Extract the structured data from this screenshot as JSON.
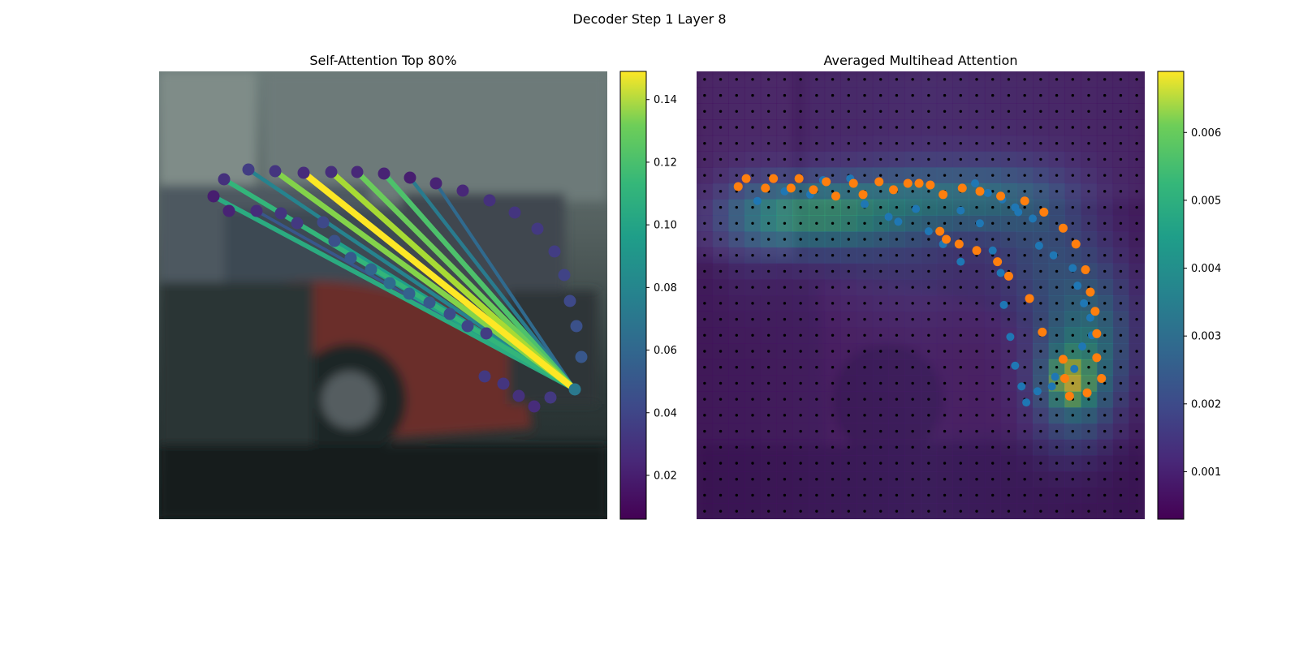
{
  "figure": {
    "suptitle": "Decoder Step 1 Layer 8"
  },
  "chart_data": [
    {
      "type": "scatter",
      "title": "Self-Attention Top 80%",
      "colormap": "viridis",
      "colorbar": {
        "range": [
          0.006,
          0.149
        ],
        "ticks": [
          "0.02",
          "0.04",
          "0.06",
          "0.08",
          "0.10",
          "0.12",
          "0.14"
        ]
      },
      "query_index": 0,
      "points": [
        {
          "x": 512,
          "y": 392,
          "v": 0.064
        },
        {
          "x": 520,
          "y": 352,
          "v": 0.045
        },
        {
          "x": 514,
          "y": 314,
          "v": 0.042
        },
        {
          "x": 506,
          "y": 283,
          "v": 0.038
        },
        {
          "x": 499,
          "y": 251,
          "v": 0.035
        },
        {
          "x": 487,
          "y": 222,
          "v": 0.032
        },
        {
          "x": 466,
          "y": 194,
          "v": 0.03
        },
        {
          "x": 438,
          "y": 174,
          "v": 0.028
        },
        {
          "x": 407,
          "y": 159,
          "v": 0.026
        },
        {
          "x": 374,
          "y": 147,
          "v": 0.022
        },
        {
          "x": 341,
          "y": 138,
          "v": 0.02
        },
        {
          "x": 309,
          "y": 131,
          "v": 0.018
        },
        {
          "x": 277,
          "y": 126,
          "v": 0.02
        },
        {
          "x": 244,
          "y": 124,
          "v": 0.022
        },
        {
          "x": 212,
          "y": 124,
          "v": 0.025
        },
        {
          "x": 178,
          "y": 125,
          "v": 0.024
        },
        {
          "x": 143,
          "y": 123,
          "v": 0.028
        },
        {
          "x": 110,
          "y": 121,
          "v": 0.032
        },
        {
          "x": 80,
          "y": 133,
          "v": 0.026
        },
        {
          "x": 67,
          "y": 154,
          "v": 0.018
        },
        {
          "x": 86,
          "y": 172,
          "v": 0.02
        },
        {
          "x": 120,
          "y": 172,
          "v": 0.024
        },
        {
          "x": 150,
          "y": 175,
          "v": 0.028
        },
        {
          "x": 170,
          "y": 187,
          "v": 0.03
        },
        {
          "x": 202,
          "y": 186,
          "v": 0.038
        },
        {
          "x": 216,
          "y": 209,
          "v": 0.042
        },
        {
          "x": 236,
          "y": 230,
          "v": 0.046
        },
        {
          "x": 261,
          "y": 244,
          "v": 0.052
        },
        {
          "x": 284,
          "y": 261,
          "v": 0.056
        },
        {
          "x": 308,
          "y": 274,
          "v": 0.05
        },
        {
          "x": 333,
          "y": 285,
          "v": 0.046
        },
        {
          "x": 358,
          "y": 299,
          "v": 0.04
        },
        {
          "x": 380,
          "y": 314,
          "v": 0.036
        },
        {
          "x": 403,
          "y": 323,
          "v": 0.032
        },
        {
          "x": 401,
          "y": 376,
          "v": 0.03
        },
        {
          "x": 424,
          "y": 385,
          "v": 0.028
        },
        {
          "x": 443,
          "y": 400,
          "v": 0.026
        },
        {
          "x": 462,
          "y": 413,
          "v": 0.024
        },
        {
          "x": 482,
          "y": 402,
          "v": 0.03
        }
      ],
      "attention_edges": [
        {
          "to": 16,
          "v": 0.122
        },
        {
          "to": 15,
          "v": 0.149
        },
        {
          "to": 14,
          "v": 0.13
        },
        {
          "to": 13,
          "v": 0.116
        },
        {
          "to": 12,
          "v": 0.108
        },
        {
          "to": 17,
          "v": 0.07
        },
        {
          "to": 11,
          "v": 0.065
        },
        {
          "to": 18,
          "v": 0.1
        },
        {
          "to": 19,
          "v": 0.094
        },
        {
          "to": 23,
          "v": 0.06
        },
        {
          "to": 25,
          "v": 0.085
        },
        {
          "to": 27,
          "v": 0.078
        },
        {
          "to": 29,
          "v": 0.088
        },
        {
          "to": 31,
          "v": 0.075
        },
        {
          "to": 33,
          "v": 0.07
        },
        {
          "to": 10,
          "v": 0.055
        },
        {
          "to": 21,
          "v": 0.045
        }
      ]
    },
    {
      "type": "heatmap",
      "title": "Averaged Multihead Attention",
      "colormap": "viridis",
      "colorbar": {
        "range": [
          0.0003,
          0.0069
        ],
        "ticks": [
          "0.001",
          "0.002",
          "0.003",
          "0.004",
          "0.005",
          "0.006"
        ]
      },
      "grid_size": 28,
      "hotspots": [
        {
          "cx": 5,
          "cy": 9,
          "sx": 2.6,
          "sy": 1.5,
          "a": 0.0024
        },
        {
          "cx": 9,
          "cy": 9,
          "sx": 3.0,
          "sy": 1.5,
          "a": 0.0026
        },
        {
          "cx": 14,
          "cy": 8,
          "sx": 3.5,
          "sy": 1.5,
          "a": 0.0018
        },
        {
          "cx": 19,
          "cy": 8,
          "sx": 3.0,
          "sy": 1.6,
          "a": 0.0016
        },
        {
          "cx": 22,
          "cy": 12,
          "sx": 2.2,
          "sy": 3.0,
          "a": 0.0014
        },
        {
          "cx": 25,
          "cy": 16,
          "sx": 1.8,
          "sy": 3.0,
          "a": 0.0018
        },
        {
          "cx": 23.5,
          "cy": 19.5,
          "sx": 1.8,
          "sy": 2.6,
          "a": 0.003
        },
        {
          "cx": 23.3,
          "cy": 19.4,
          "sx": 0.8,
          "sy": 0.9,
          "a": 0.0032
        },
        {
          "cx": 13,
          "cy": 12,
          "sx": 4.0,
          "sy": 2.5,
          "a": 0.0006
        },
        {
          "cx": 3,
          "cy": 10,
          "sx": 1.5,
          "sy": 3,
          "a": 0.0004
        }
      ],
      "reference_points": [
        [
          3.8,
          8.1
        ],
        [
          5.5,
          7.5
        ],
        [
          7.1,
          7.7
        ],
        [
          7.9,
          6.8
        ],
        [
          9.6,
          6.7
        ],
        [
          10.5,
          8.3
        ],
        [
          12.0,
          9.1
        ],
        [
          12.6,
          9.4
        ],
        [
          13.7,
          8.6
        ],
        [
          14.5,
          10.0
        ],
        [
          15.4,
          10.8
        ],
        [
          16.5,
          11.9
        ],
        [
          17.4,
          7.0
        ],
        [
          18.2,
          7.6
        ],
        [
          19.1,
          8.0
        ],
        [
          19.9,
          8.5
        ],
        [
          20.1,
          8.8
        ],
        [
          21.0,
          9.2
        ],
        [
          21.4,
          10.9
        ],
        [
          22.3,
          11.5
        ],
        [
          23.5,
          12.3
        ],
        [
          23.8,
          13.4
        ],
        [
          24.2,
          14.5
        ],
        [
          24.6,
          15.4
        ],
        [
          24.7,
          16.5
        ],
        [
          24.1,
          17.2
        ],
        [
          23.6,
          18.6
        ],
        [
          22.4,
          19.1
        ],
        [
          22.2,
          19.7
        ],
        [
          21.3,
          20.0
        ],
        [
          20.6,
          20.7
        ],
        [
          20.3,
          19.7
        ],
        [
          19.9,
          18.4
        ],
        [
          19.6,
          16.6
        ],
        [
          19.2,
          14.6
        ],
        [
          19.0,
          12.6
        ],
        [
          18.5,
          11.2
        ],
        [
          17.7,
          9.5
        ],
        [
          16.5,
          8.7
        ]
      ],
      "predicted_points": [
        [
          2.6,
          7.2
        ],
        [
          3.1,
          6.7
        ],
        [
          4.3,
          7.3
        ],
        [
          4.8,
          6.7
        ],
        [
          5.9,
          7.3
        ],
        [
          6.4,
          6.7
        ],
        [
          7.3,
          7.4
        ],
        [
          8.1,
          6.9
        ],
        [
          8.7,
          7.8
        ],
        [
          9.8,
          7.0
        ],
        [
          10.4,
          7.7
        ],
        [
          11.4,
          6.9
        ],
        [
          12.3,
          7.4
        ],
        [
          13.2,
          7.0
        ],
        [
          13.9,
          7.0
        ],
        [
          14.6,
          7.1
        ],
        [
          15.4,
          7.7
        ],
        [
          16.6,
          7.3
        ],
        [
          17.7,
          7.5
        ],
        [
          19.0,
          7.8
        ],
        [
          20.5,
          8.1
        ],
        [
          21.7,
          8.8
        ],
        [
          22.9,
          9.8
        ],
        [
          23.7,
          10.8
        ],
        [
          24.3,
          12.4
        ],
        [
          24.6,
          13.8
        ],
        [
          24.9,
          15.0
        ],
        [
          25.0,
          16.4
        ],
        [
          25.0,
          17.9
        ],
        [
          25.3,
          19.2
        ],
        [
          24.4,
          20.1
        ],
        [
          23.3,
          20.3
        ],
        [
          23.0,
          19.2
        ],
        [
          22.9,
          18.0
        ],
        [
          21.6,
          16.3
        ],
        [
          20.8,
          14.2
        ],
        [
          19.5,
          12.8
        ],
        [
          18.8,
          11.9
        ],
        [
          17.5,
          11.2
        ],
        [
          16.4,
          10.8
        ],
        [
          15.6,
          10.5
        ],
        [
          15.2,
          10.0
        ]
      ]
    }
  ]
}
